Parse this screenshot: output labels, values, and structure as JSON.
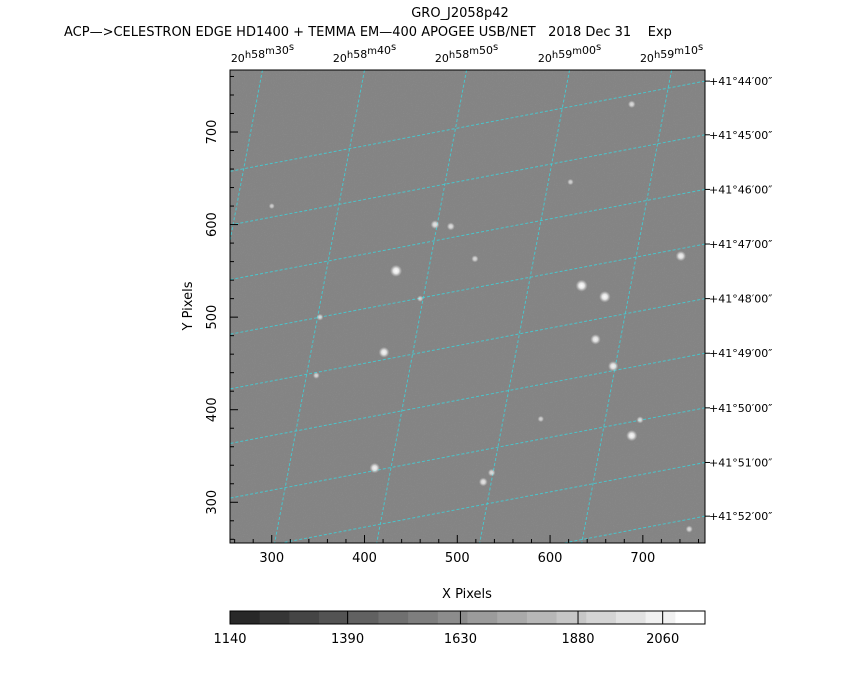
{
  "header": {
    "title": "GRO_J2058p42",
    "subtitle": "ACP—>CELESTRON EDGE HD1400 + TEMMA EM—400 APOGEE USB/NET   2018 Dec 31    Exp"
  },
  "chart_data": {
    "type": "heatmap",
    "title": "GRO_J2058p42",
    "subtitle": "ACP—>CELESTRON EDGE HD1400 + TEMMA EM—400 APOGEE USB/NET   2018 Dec 31    Exp",
    "xlabel": "X Pixels",
    "ylabel": "Y Pixels",
    "xlim": [
      255,
      767
    ],
    "ylim": [
      256,
      767
    ],
    "x_ticks": [
      300,
      400,
      500,
      600,
      700
    ],
    "y_ticks": [
      300,
      400,
      500,
      600,
      700
    ],
    "ra_labels": [
      {
        "h": "20",
        "m": "58",
        "s": "30",
        "x": 290
      },
      {
        "h": "20",
        "m": "58",
        "s": "40",
        "x": 400
      },
      {
        "h": "20",
        "m": "58",
        "s": "50",
        "x": 510
      },
      {
        "h": "20",
        "m": "59",
        "s": "00",
        "x": 621
      },
      {
        "h": "20",
        "m": "59",
        "s": "10",
        "x": 731
      }
    ],
    "dec_labels": [
      {
        "label": "+41°44′00″",
        "y": 755
      },
      {
        "label": "+41°45′00″",
        "y": 697
      },
      {
        "label": "+41°46′00″",
        "y": 638
      },
      {
        "label": "+41°47′00″",
        "y": 579
      },
      {
        "label": "+41°48′00″",
        "y": 520
      },
      {
        "label": "+41°49′00″",
        "y": 461
      },
      {
        "label": "+41°50′00″",
        "y": 402
      },
      {
        "label": "+41°51′00″",
        "y": 343
      },
      {
        "label": "+41°52′00″",
        "y": 285
      }
    ],
    "stars": [
      {
        "x": 434,
        "y": 550,
        "b": 1.0
      },
      {
        "x": 421,
        "y": 462,
        "b": 0.85
      },
      {
        "x": 476,
        "y": 600,
        "b": 0.6
      },
      {
        "x": 493,
        "y": 598,
        "b": 0.5
      },
      {
        "x": 519,
        "y": 563,
        "b": 0.4
      },
      {
        "x": 352,
        "y": 500,
        "b": 0.35
      },
      {
        "x": 348,
        "y": 437,
        "b": 0.35
      },
      {
        "x": 411,
        "y": 337,
        "b": 0.8
      },
      {
        "x": 528,
        "y": 322,
        "b": 0.6
      },
      {
        "x": 537,
        "y": 332,
        "b": 0.45
      },
      {
        "x": 634,
        "y": 534,
        "b": 1.0
      },
      {
        "x": 659,
        "y": 522,
        "b": 0.95
      },
      {
        "x": 649,
        "y": 476,
        "b": 0.8
      },
      {
        "x": 668,
        "y": 447,
        "b": 0.8
      },
      {
        "x": 688,
        "y": 372,
        "b": 0.9
      },
      {
        "x": 697,
        "y": 389,
        "b": 0.4
      },
      {
        "x": 741,
        "y": 566,
        "b": 0.8
      },
      {
        "x": 688,
        "y": 730,
        "b": 0.45
      },
      {
        "x": 750,
        "y": 271,
        "b": 0.4
      },
      {
        "x": 460,
        "y": 520,
        "b": 0.3
      },
      {
        "x": 590,
        "y": 390,
        "b": 0.3
      },
      {
        "x": 300,
        "y": 620,
        "b": 0.25
      },
      {
        "x": 622,
        "y": 646,
        "b": 0.3
      }
    ],
    "colorbar": {
      "ticks": [
        1140,
        1390,
        1630,
        1880,
        2060
      ],
      "range": [
        1140,
        2150
      ],
      "levels": 16
    }
  }
}
